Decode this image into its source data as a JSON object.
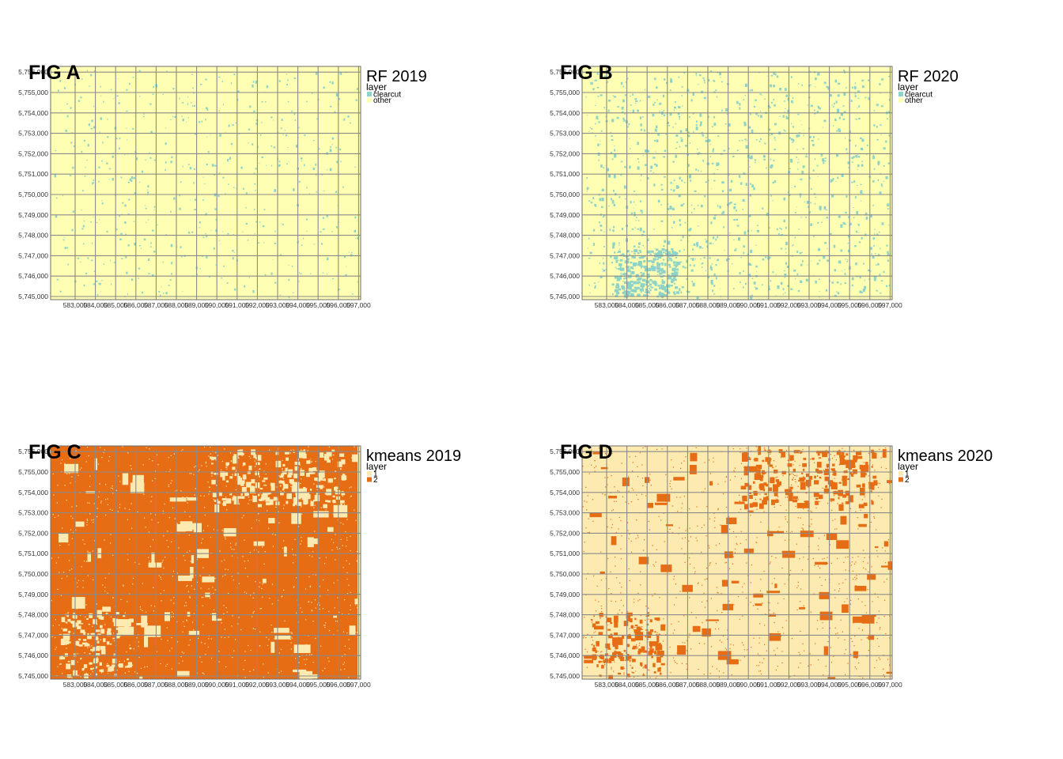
{
  "colors": {
    "page_background": "#ffffff",
    "grid": "#8a8a8a",
    "frame": "#6e6e6e",
    "rf_background": "#ffffb3",
    "rf_clearcut": "#8dd3c7",
    "km_class1": "#fdeab0",
    "km_class2": "#e66d14"
  },
  "axes": {
    "x_ticks": [
      "583,000",
      "584,000",
      "585,000",
      "586,000",
      "587,000",
      "588,000",
      "589,000",
      "590,000",
      "591,000",
      "592,000",
      "593,000",
      "594,000",
      "595,000",
      "596,000",
      "597,000"
    ],
    "y_ticks": [
      "5,745,000",
      "5,746,000",
      "5,747,000",
      "5,748,000",
      "5,749,000",
      "5,750,000",
      "5,751,000",
      "5,752,000",
      "5,753,000",
      "5,754,000",
      "5,755,000",
      "5,756,000"
    ]
  },
  "panels": [
    {
      "id": "a",
      "fig_label": "FIG A",
      "legend_title": "RF 2019",
      "legend_subtitle": "layer",
      "legend_items": [
        {
          "label": "clearcut",
          "color": "#8dd3c7"
        },
        {
          "label": "other",
          "color": "#ffffb3"
        }
      ],
      "style": "rf",
      "background": "#ffffb3",
      "foreground": "#8dd3c7",
      "coverage": "sparse"
    },
    {
      "id": "b",
      "fig_label": "FIG B",
      "legend_title": "RF 2020",
      "legend_subtitle": "layer",
      "legend_items": [
        {
          "label": "clearcut",
          "color": "#8dd3c7"
        },
        {
          "label": "other",
          "color": "#ffffb3"
        }
      ],
      "style": "rf",
      "background": "#ffffb3",
      "foreground": "#8dd3c7",
      "coverage": "moderate"
    },
    {
      "id": "c",
      "fig_label": "FIG C",
      "legend_title": "kmeans 2019",
      "legend_subtitle": "layer",
      "legend_items": [
        {
          "label": "1",
          "color": "#fdeab0"
        },
        {
          "label": "2",
          "color": "#e66d14"
        }
      ],
      "style": "km-dominant",
      "background": "#e66d14",
      "foreground": "#fdeab0",
      "coverage": "patchy"
    },
    {
      "id": "d",
      "fig_label": "FIG D",
      "legend_title": "kmeans 2020",
      "legend_subtitle": "layer",
      "legend_items": [
        {
          "label": "1",
          "color": "#fdeab0"
        },
        {
          "label": "2",
          "color": "#e66d14"
        }
      ],
      "style": "km-sparse",
      "background": "#fdeab0",
      "foreground": "#e66d14",
      "coverage": "patchy"
    }
  ]
}
